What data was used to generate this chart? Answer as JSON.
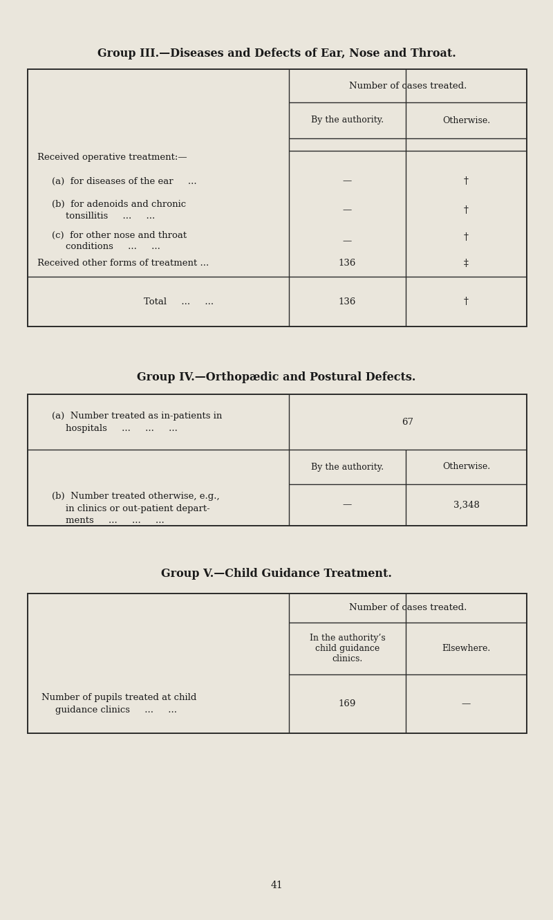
{
  "bg_color": "#eae6dc",
  "text_color": "#1a1a1a",
  "border_color": "#2a2a2a",
  "title1": "Group III.—Diseases and Defects of Ear, Nose and Throat.",
  "title2": "Group IV.—Orthopædic and Postural Defects.",
  "title3": "Group V.—Child Guidance Treatment.",
  "page_number": "41",
  "fig_w": 8.0,
  "fig_h": 13.3,
  "dpi": 100
}
